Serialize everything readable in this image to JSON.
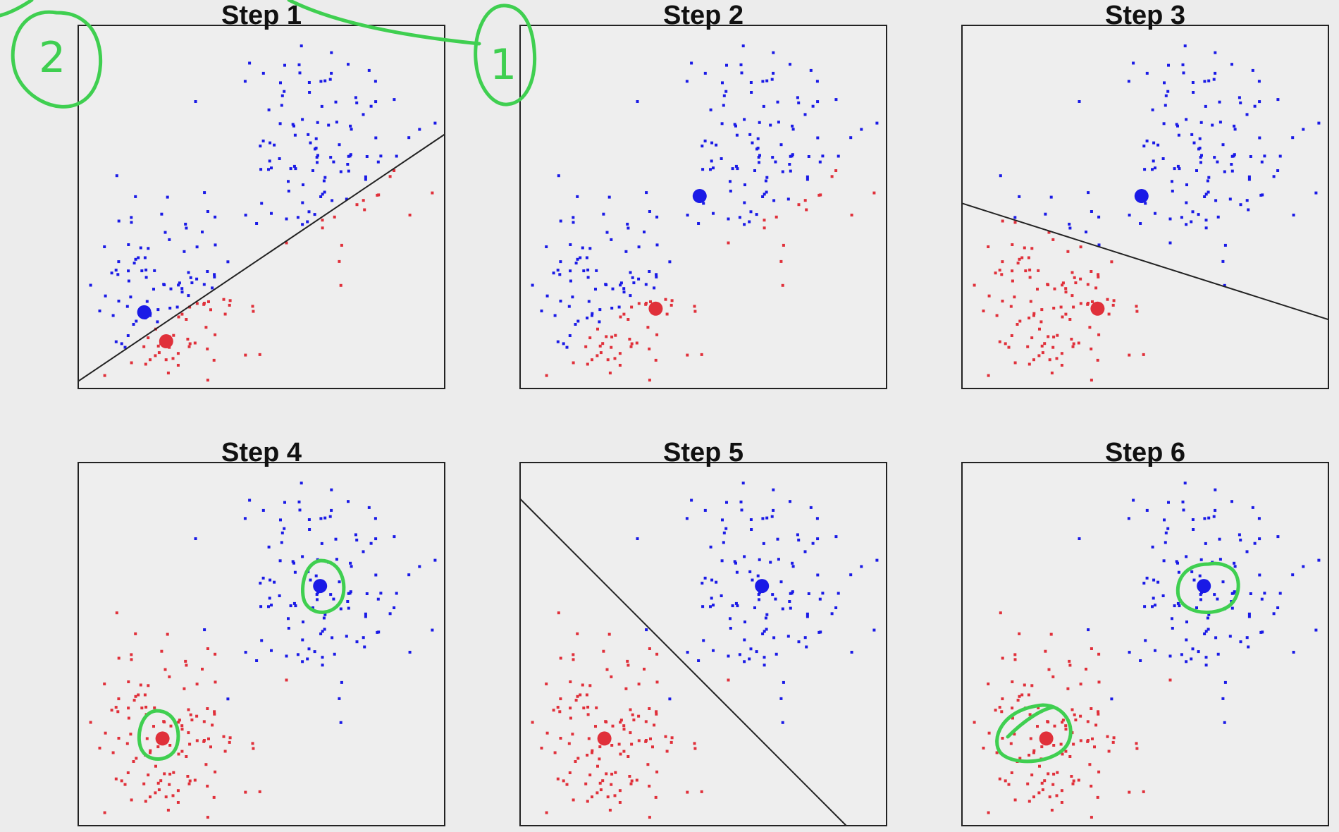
{
  "colors": {
    "class_a": "#1a1ae6",
    "class_b": "#e0303a",
    "annotation": "#3fcf50",
    "boundary": "#222222"
  },
  "annotations": {
    "mark_left": "2",
    "mark_right": "1"
  },
  "chart_data": [
    {
      "type": "scatter",
      "title": "Step 1",
      "xlim": [
        0,
        10
      ],
      "ylim": [
        0,
        10
      ],
      "centroids": [
        {
          "class": "blue",
          "x": 1.8,
          "y": 2.1
        },
        {
          "class": "red",
          "x": 2.4,
          "y": 1.3
        }
      ],
      "boundary": [
        [
          0,
          0.2
        ],
        [
          10,
          7.0
        ]
      ],
      "assignment": "initial"
    },
    {
      "type": "scatter",
      "title": "Step 2",
      "xlim": [
        0,
        10
      ],
      "ylim": [
        0,
        10
      ],
      "centroids": [
        {
          "class": "blue",
          "x": 4.9,
          "y": 5.3
        },
        {
          "class": "red",
          "x": 3.7,
          "y": 2.2
        }
      ],
      "boundary": null,
      "assignment": "initial"
    },
    {
      "type": "scatter",
      "title": "Step 3",
      "xlim": [
        0,
        10
      ],
      "ylim": [
        0,
        10
      ],
      "centroids": [
        {
          "class": "blue",
          "x": 4.9,
          "y": 5.3
        },
        {
          "class": "red",
          "x": 3.7,
          "y": 2.2
        }
      ],
      "boundary": [
        [
          0,
          5.1
        ],
        [
          10,
          1.9
        ]
      ],
      "assignment": "partial"
    },
    {
      "type": "scatter",
      "title": "Step 4",
      "xlim": [
        0,
        10
      ],
      "ylim": [
        0,
        10
      ],
      "centroids": [
        {
          "class": "blue",
          "x": 6.6,
          "y": 6.6
        },
        {
          "class": "red",
          "x": 2.3,
          "y": 2.4
        }
      ],
      "boundary": null,
      "assignment": "final"
    },
    {
      "type": "scatter",
      "title": "Step 5",
      "xlim": [
        0,
        10
      ],
      "ylim": [
        0,
        10
      ],
      "centroids": [
        {
          "class": "blue",
          "x": 6.6,
          "y": 6.6
        },
        {
          "class": "red",
          "x": 2.3,
          "y": 2.4
        }
      ],
      "boundary": [
        [
          0,
          9.0
        ],
        [
          8.9,
          0
        ]
      ],
      "assignment": "final"
    },
    {
      "type": "scatter",
      "title": "Step 6",
      "xlim": [
        0,
        10
      ],
      "ylim": [
        0,
        10
      ],
      "centroids": [
        {
          "class": "blue",
          "x": 6.6,
          "y": 6.6
        },
        {
          "class": "red",
          "x": 2.3,
          "y": 2.4
        }
      ],
      "boundary": null,
      "assignment": "final"
    }
  ]
}
